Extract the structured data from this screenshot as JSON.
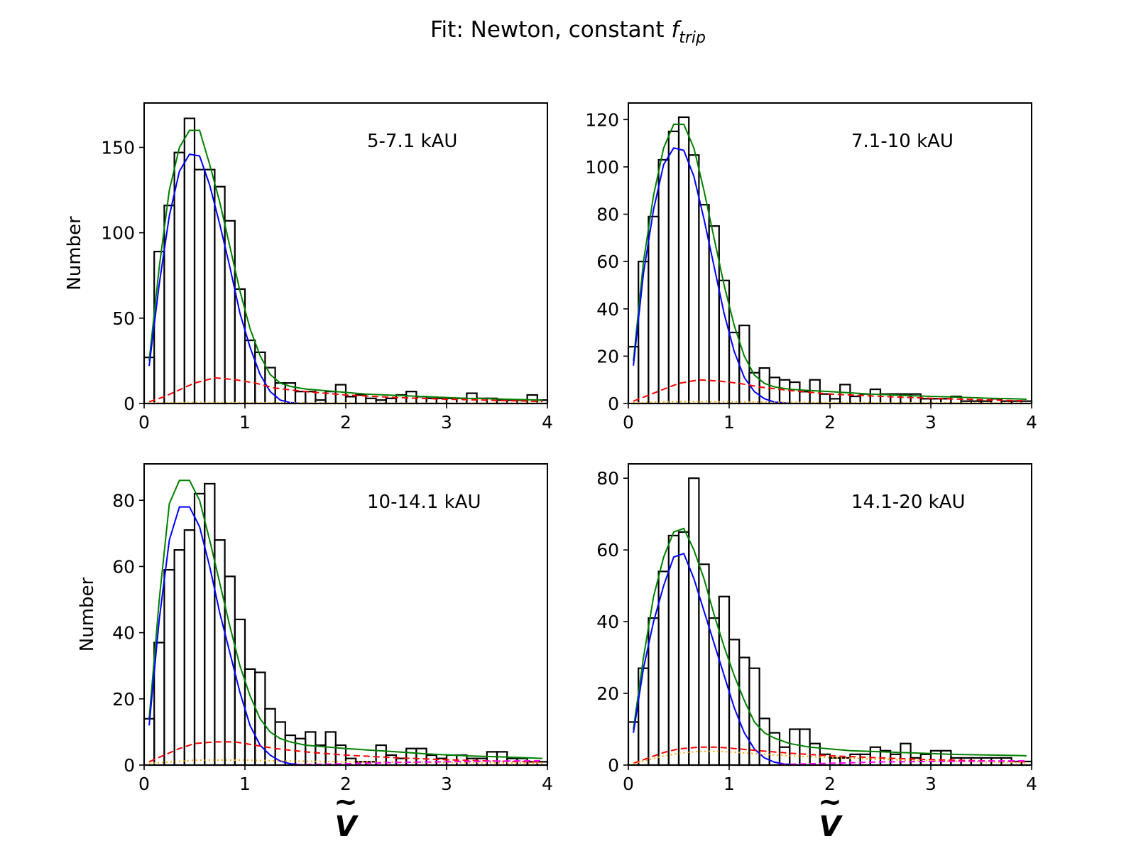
{
  "figure": {
    "title_prefix": "Fit: Newton, constant ",
    "title_symbol": "f",
    "title_subscript": "trip",
    "xlabel_symbol": "V",
    "xlabel_accent": "~",
    "ylabel": "Number"
  },
  "colors": {
    "histogram": "#000000",
    "total_fit": "#008000",
    "newton_binary": "#0000ff",
    "triple_component": "#ff0000",
    "flyby_component": "#ffa500",
    "magenta_component": "#ff00ff"
  },
  "chart_data": [
    {
      "type": "bar",
      "panel": "top-left",
      "label": "5-7.1 kAU",
      "ylabel": "Number",
      "xlim": [
        0,
        4
      ],
      "ylim": [
        0,
        176
      ],
      "xticks": [
        0,
        1,
        2,
        3,
        4
      ],
      "yticks": [
        0,
        50,
        100,
        150
      ],
      "grid": false,
      "bin_width": 0.1,
      "bin_edges_start": 0.0,
      "counts": [
        27,
        89,
        116,
        147,
        167,
        137,
        137,
        127,
        107,
        67,
        37,
        30,
        21,
        12,
        12,
        7,
        7,
        2,
        7,
        11,
        4,
        5,
        3,
        2,
        3,
        5,
        7,
        4,
        3,
        3,
        3,
        3,
        6,
        3,
        3,
        2,
        2,
        2,
        5,
        2
      ],
      "series": [
        {
          "name": "total",
          "color": "#008000",
          "style": "solid",
          "x": [
            0.05,
            0.15,
            0.25,
            0.35,
            0.45,
            0.55,
            0.65,
            0.75,
            0.85,
            0.95,
            1.05,
            1.15,
            1.25,
            1.35,
            1.45,
            1.6,
            1.8,
            2.0,
            2.2,
            2.4,
            2.6,
            2.8,
            3.0,
            3.2,
            3.4,
            3.6,
            3.8,
            3.95
          ],
          "y": [
            25,
            80,
            125,
            150,
            160,
            160,
            140,
            118,
            92,
            66,
            44,
            28,
            17,
            12,
            10,
            8.5,
            7.5,
            6.5,
            5.5,
            5,
            4.5,
            4,
            3.5,
            3,
            2.8,
            2.5,
            2.2,
            2
          ]
        },
        {
          "name": "newton",
          "color": "#0000ff",
          "style": "solid",
          "x": [
            0.05,
            0.15,
            0.25,
            0.35,
            0.45,
            0.55,
            0.65,
            0.75,
            0.85,
            0.95,
            1.05,
            1.15,
            1.25,
            1.35,
            1.45,
            1.55
          ],
          "y": [
            22,
            70,
            110,
            136,
            146,
            145,
            128,
            105,
            80,
            53,
            33,
            17,
            7,
            2,
            0.5,
            0
          ]
        },
        {
          "name": "triple",
          "color": "#ff0000",
          "style": "dashed",
          "x": [
            0.05,
            0.2,
            0.35,
            0.5,
            0.7,
            0.9,
            1.1,
            1.3,
            1.6,
            2.0,
            2.5,
            3.0,
            3.5,
            3.95
          ],
          "y": [
            1,
            4,
            8,
            12,
            15,
            14,
            12,
            9,
            7,
            5,
            3.5,
            2.5,
            1.8,
            1.2
          ]
        },
        {
          "name": "flyby",
          "color": "#ffa500",
          "style": "dotted",
          "x": [
            0.05,
            0.5,
            1.0,
            1.5,
            2.0,
            3.0,
            3.95
          ],
          "y": [
            0.3,
            0.6,
            0.5,
            0.4,
            0.3,
            0.2,
            0.2
          ]
        }
      ]
    },
    {
      "type": "bar",
      "panel": "top-right",
      "label": "7.1-10 kAU",
      "ylabel": "",
      "xlim": [
        0,
        4
      ],
      "ylim": [
        0,
        127
      ],
      "xticks": [
        0,
        1,
        2,
        3,
        4
      ],
      "yticks": [
        0,
        20,
        40,
        60,
        80,
        100,
        120
      ],
      "grid": false,
      "bin_width": 0.1,
      "bin_edges_start": 0.0,
      "counts": [
        24,
        60,
        79,
        103,
        115,
        121,
        105,
        84,
        75,
        52,
        30,
        33,
        13,
        15,
        11,
        10,
        9,
        5,
        10,
        4,
        2,
        8,
        3,
        4,
        6,
        4,
        4,
        4,
        4,
        2,
        2,
        2,
        3,
        1,
        1,
        1,
        2,
        1,
        1,
        1
      ],
      "series": [
        {
          "name": "total",
          "color": "#008000",
          "style": "solid",
          "x": [
            0.05,
            0.15,
            0.25,
            0.35,
            0.45,
            0.55,
            0.65,
            0.75,
            0.85,
            0.95,
            1.05,
            1.15,
            1.25,
            1.35,
            1.45,
            1.6,
            1.8,
            2.0,
            2.2,
            2.4,
            2.6,
            2.8,
            3.0,
            3.2,
            3.4,
            3.6,
            3.8,
            3.95
          ],
          "y": [
            18,
            60,
            88,
            108,
            118,
            118,
            108,
            90,
            70,
            50,
            33,
            20,
            12,
            8.5,
            7,
            6,
            5.5,
            5,
            4.5,
            4,
            3.7,
            3.3,
            3,
            2.8,
            2.5,
            2.2,
            2,
            1.8
          ]
        },
        {
          "name": "newton",
          "color": "#0000ff",
          "style": "solid",
          "x": [
            0.05,
            0.15,
            0.25,
            0.35,
            0.45,
            0.55,
            0.65,
            0.75,
            0.85,
            0.95,
            1.05,
            1.15,
            1.25,
            1.35,
            1.45,
            1.55,
            1.6
          ],
          "y": [
            16,
            55,
            82,
            101,
            108,
            107,
            96,
            78,
            58,
            38,
            22,
            11,
            5,
            2,
            0.6,
            0.2,
            0
          ]
        },
        {
          "name": "triple",
          "color": "#ff0000",
          "style": "dashed",
          "x": [
            0.05,
            0.2,
            0.35,
            0.5,
            0.7,
            0.9,
            1.1,
            1.3,
            1.6,
            2.0,
            2.5,
            3.0,
            3.5,
            3.95
          ],
          "y": [
            1,
            3.5,
            6,
            8.5,
            10,
            9.5,
            8.5,
            7,
            5.5,
            4,
            3,
            2.2,
            1.6,
            1.1
          ]
        },
        {
          "name": "flyby",
          "color": "#ffa500",
          "style": "dotted",
          "x": [
            0.05,
            0.5,
            1.0,
            1.5,
            2.0,
            3.0,
            3.95
          ],
          "y": [
            0.3,
            0.8,
            0.7,
            0.5,
            0.4,
            0.3,
            0.2
          ]
        }
      ]
    },
    {
      "type": "bar",
      "panel": "bottom-left",
      "label": "10-14.1 kAU",
      "ylabel": "Number",
      "xlim": [
        0,
        4
      ],
      "ylim": [
        0,
        91
      ],
      "xticks": [
        0,
        1,
        2,
        3,
        4
      ],
      "yticks": [
        0,
        20,
        40,
        60,
        80
      ],
      "grid": false,
      "bin_width": 0.1,
      "bin_edges_start": 0.0,
      "counts": [
        14,
        37,
        59,
        65,
        71,
        82,
        85,
        68,
        57,
        44,
        29,
        28,
        17,
        13,
        9,
        8,
        10,
        6,
        10,
        6,
        2,
        1,
        1,
        6,
        3,
        2,
        5,
        5,
        3,
        2,
        3,
        3,
        2,
        2,
        4,
        4,
        2,
        2,
        1,
        1
      ],
      "series": [
        {
          "name": "total",
          "color": "#008000",
          "style": "solid",
          "x": [
            0.05,
            0.15,
            0.25,
            0.35,
            0.45,
            0.55,
            0.65,
            0.75,
            0.85,
            0.95,
            1.05,
            1.15,
            1.25,
            1.35,
            1.45,
            1.6,
            1.8,
            2.0,
            2.2,
            2.4,
            2.6,
            2.8,
            3.0,
            3.2,
            3.4,
            3.6,
            3.8,
            3.95
          ],
          "y": [
            14,
            50,
            79,
            86,
            86,
            80,
            68,
            55,
            42,
            30,
            21,
            14,
            10,
            8,
            7,
            6,
            5.5,
            5,
            4.6,
            4.2,
            3.8,
            3.4,
            3.1,
            2.8,
            2.6,
            2.4,
            2.2,
            2
          ]
        },
        {
          "name": "newton",
          "color": "#0000ff",
          "style": "solid",
          "x": [
            0.05,
            0.15,
            0.25,
            0.35,
            0.45,
            0.55,
            0.65,
            0.75,
            0.85,
            0.95,
            1.05,
            1.15,
            1.25,
            1.35,
            1.45,
            1.55,
            1.6
          ],
          "y": [
            12,
            44,
            68,
            78,
            78,
            72,
            60,
            46,
            34,
            22,
            12,
            6,
            3,
            1.2,
            0.4,
            0.1,
            0
          ]
        },
        {
          "name": "triple",
          "color": "#ff0000",
          "style": "dashed",
          "x": [
            0.05,
            0.2,
            0.35,
            0.5,
            0.7,
            0.9,
            1.1,
            1.3,
            1.6,
            2.0,
            2.5,
            3.0,
            3.5,
            3.95
          ],
          "y": [
            1,
            3,
            5,
            6.5,
            7,
            7,
            6,
            5,
            4,
            3,
            2.2,
            1.6,
            1.2,
            0.9
          ]
        },
        {
          "name": "flyby",
          "color": "#ffa500",
          "style": "dotted",
          "x": [
            0.05,
            0.5,
            1.0,
            1.5,
            2.0,
            3.0,
            3.95
          ],
          "y": [
            0.5,
            1.5,
            1.5,
            1.2,
            1,
            0.8,
            0.6
          ]
        },
        {
          "name": "magenta",
          "color": "#ff00ff",
          "style": "dashed",
          "x": [
            1.5,
            2.0,
            2.5,
            3.0,
            3.5,
            3.95
          ],
          "y": [
            0.1,
            0.4,
            0.8,
            1.0,
            1.2,
            1.3
          ]
        }
      ]
    },
    {
      "type": "bar",
      "panel": "bottom-right",
      "label": "14.1-20 kAU",
      "ylabel": "",
      "xlim": [
        0,
        4
      ],
      "ylim": [
        0,
        84
      ],
      "xticks": [
        0,
        1,
        2,
        3,
        4
      ],
      "yticks": [
        0,
        20,
        40,
        60,
        80
      ],
      "grid": false,
      "bin_width": 0.1,
      "bin_edges_start": 0.0,
      "counts": [
        12,
        27,
        41,
        54,
        64,
        65,
        80,
        56,
        41,
        47,
        35,
        30,
        27,
        13,
        9,
        5,
        10,
        10,
        6,
        3,
        2,
        2,
        3,
        3,
        5,
        4,
        3,
        6,
        2,
        3,
        4,
        4,
        2,
        2,
        2,
        2,
        2,
        2,
        1,
        1
      ],
      "series": [
        {
          "name": "total",
          "color": "#008000",
          "style": "solid",
          "x": [
            0.05,
            0.15,
            0.25,
            0.35,
            0.45,
            0.55,
            0.65,
            0.75,
            0.85,
            0.95,
            1.05,
            1.15,
            1.25,
            1.35,
            1.45,
            1.6,
            1.8,
            2.0,
            2.2,
            2.4,
            2.6,
            2.8,
            3.0,
            3.2,
            3.4,
            3.6,
            3.8,
            3.95
          ],
          "y": [
            10,
            30,
            47,
            58,
            65,
            66,
            60,
            52,
            42,
            33,
            25,
            18,
            12,
            9,
            7.5,
            6,
            5,
            4.5,
            4,
            3.8,
            3.6,
            3.4,
            3.2,
            3,
            2.9,
            2.8,
            2.7,
            2.6
          ]
        },
        {
          "name": "newton",
          "color": "#0000ff",
          "style": "solid",
          "x": [
            0.05,
            0.15,
            0.25,
            0.35,
            0.45,
            0.55,
            0.65,
            0.75,
            0.85,
            0.95,
            1.05,
            1.15,
            1.25,
            1.35,
            1.45,
            1.55,
            1.65,
            1.8
          ],
          "y": [
            9,
            27,
            40,
            50,
            58,
            59,
            52,
            43,
            34,
            25,
            16,
            9,
            4.5,
            2,
            0.8,
            0.3,
            0.1,
            0
          ]
        },
        {
          "name": "triple",
          "color": "#ff0000",
          "style": "dashed",
          "x": [
            0.05,
            0.2,
            0.35,
            0.5,
            0.7,
            0.9,
            1.1,
            1.3,
            1.6,
            2.0,
            2.5,
            3.0,
            3.5,
            3.95
          ],
          "y": [
            0.5,
            2,
            3.5,
            4.5,
            5,
            5,
            4.5,
            4,
            3.3,
            2.6,
            2,
            1.5,
            1.2,
            0.9
          ]
        },
        {
          "name": "flyby",
          "color": "#ffa500",
          "style": "dotted",
          "x": [
            0.05,
            0.2,
            0.35,
            0.5,
            0.7,
            0.9,
            1.1,
            1.3,
            1.6,
            2.0,
            2.5,
            3.0,
            3.5,
            3.95
          ],
          "y": [
            0.4,
            1.5,
            2.5,
            3.3,
            3.8,
            3.8,
            3.5,
            3.1,
            2.6,
            2.1,
            1.6,
            1.2,
            0.9,
            0.7
          ]
        },
        {
          "name": "magenta",
          "color": "#ff00ff",
          "style": "dashed",
          "x": [
            1.5,
            2.0,
            2.5,
            3.0,
            3.5,
            3.95
          ],
          "y": [
            0.2,
            0.5,
            0.9,
            1.0,
            1.1,
            1.2
          ]
        }
      ]
    }
  ]
}
